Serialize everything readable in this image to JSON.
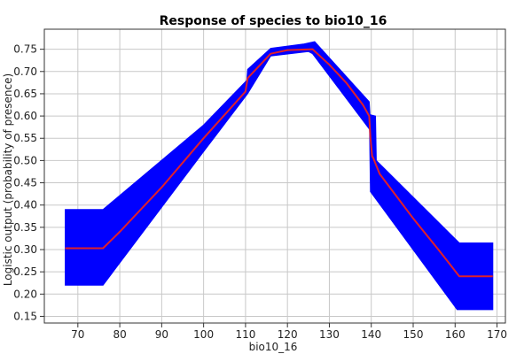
{
  "chart_data": {
    "type": "line",
    "title": "Response of species to bio10_16",
    "xlabel": "bio10_16",
    "ylabel": "Logistic output (probability of presence)",
    "xlim": [
      62,
      172
    ],
    "ylim": [
      0.135,
      0.795
    ],
    "x_ticks": [
      70,
      80,
      90,
      100,
      110,
      120,
      130,
      140,
      150,
      160,
      170
    ],
    "y_ticks": [
      0.15,
      0.2,
      0.25,
      0.3,
      0.35,
      0.4,
      0.45,
      0.5,
      0.55,
      0.6,
      0.65,
      0.7,
      0.75
    ],
    "grid": true,
    "series": [
      {
        "role": "mean",
        "color": "#e0202a",
        "points": [
          [
            67,
            0.303
          ],
          [
            76,
            0.303
          ],
          [
            80,
            0.34
          ],
          [
            90,
            0.44
          ],
          [
            100,
            0.55
          ],
          [
            110,
            0.655
          ],
          [
            110.5,
            0.685
          ],
          [
            116,
            0.74
          ],
          [
            120,
            0.748
          ],
          [
            126,
            0.75
          ],
          [
            130,
            0.715
          ],
          [
            134,
            0.675
          ],
          [
            138,
            0.625
          ],
          [
            139.5,
            0.6
          ],
          [
            139.8,
            0.55
          ],
          [
            140.2,
            0.51
          ],
          [
            140.5,
            0.505
          ],
          [
            142,
            0.47
          ],
          [
            150,
            0.37
          ],
          [
            156,
            0.3
          ],
          [
            161,
            0.24
          ],
          [
            169,
            0.24
          ]
        ]
      },
      {
        "role": "band",
        "color": "#0000ff",
        "upper": [
          [
            67,
            0.39
          ],
          [
            76,
            0.39
          ],
          [
            100,
            0.58
          ],
          [
            110.3,
            0.68
          ],
          [
            110.5,
            0.705
          ],
          [
            116,
            0.752
          ],
          [
            124,
            0.762
          ],
          [
            126.5,
            0.767
          ],
          [
            139.5,
            0.632
          ],
          [
            139.7,
            0.603
          ],
          [
            141,
            0.6
          ],
          [
            141.2,
            0.5
          ],
          [
            161,
            0.315
          ],
          [
            169,
            0.315
          ]
        ],
        "lower": [
          [
            67,
            0.22
          ],
          [
            76,
            0.22
          ],
          [
            100,
            0.52
          ],
          [
            110.5,
            0.65
          ],
          [
            116,
            0.735
          ],
          [
            125,
            0.745
          ],
          [
            126,
            0.74
          ],
          [
            139.6,
            0.57
          ],
          [
            139.8,
            0.43
          ],
          [
            160.5,
            0.165
          ],
          [
            169,
            0.165
          ]
        ]
      }
    ]
  }
}
